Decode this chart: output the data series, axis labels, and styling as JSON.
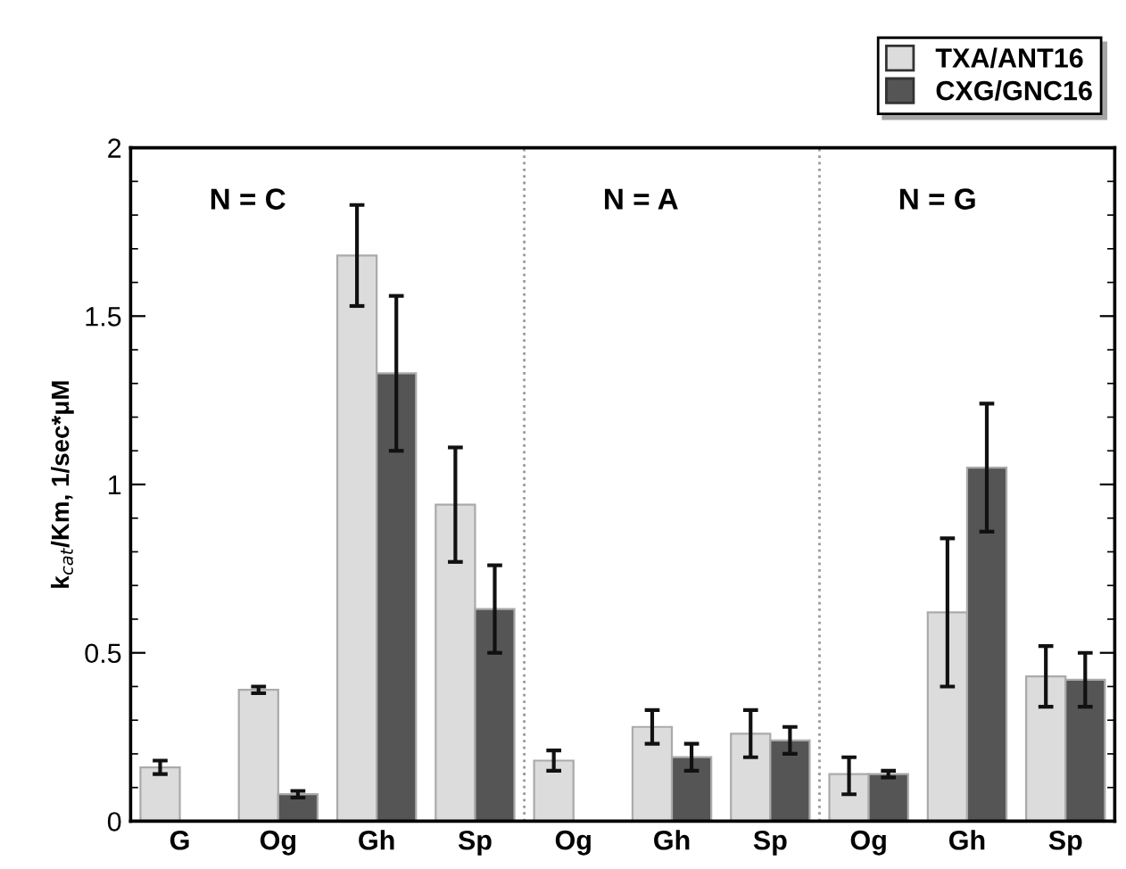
{
  "chart_data": {
    "type": "bar",
    "ylabel": "k$_{cat}$/Km, 1/sec*μM",
    "categories": [
      "G",
      "Og",
      "Gh",
      "Sp",
      "Og",
      "Gh",
      "Sp",
      "Og",
      "Gh",
      "Sp"
    ],
    "series": [
      {
        "name": "TXA/ANT16",
        "color": "#dcdcdc",
        "values": [
          0.16,
          0.39,
          1.68,
          0.94,
          0.18,
          0.28,
          0.26,
          0.14,
          0.62,
          0.43
        ],
        "errors": [
          [
            0.14,
            0.18
          ],
          [
            0.38,
            0.4
          ],
          [
            1.53,
            1.83
          ],
          [
            0.77,
            1.11
          ],
          [
            0.15,
            0.21
          ],
          [
            0.23,
            0.33
          ],
          [
            0.19,
            0.33
          ],
          [
            0.08,
            0.19
          ],
          [
            0.4,
            0.84
          ],
          [
            0.34,
            0.52
          ]
        ]
      },
      {
        "name": "CXG/GNC16",
        "color": "#555555",
        "values": [
          null,
          0.08,
          1.33,
          0.63,
          null,
          0.19,
          0.24,
          0.14,
          1.05,
          0.42
        ],
        "errors": [
          null,
          [
            0.07,
            0.09
          ],
          [
            1.1,
            1.56
          ],
          [
            0.5,
            0.76
          ],
          null,
          [
            0.15,
            0.23
          ],
          [
            0.2,
            0.28
          ],
          [
            0.13,
            0.15
          ],
          [
            0.86,
            1.24
          ],
          [
            0.34,
            0.5
          ]
        ]
      }
    ],
    "ylim": [
      0,
      2
    ],
    "yticks": [
      0,
      0.5,
      1,
      1.5,
      2
    ],
    "grid": false,
    "legend": "top right",
    "annotations": [
      "N = C",
      "N = A",
      "N = G"
    ]
  }
}
